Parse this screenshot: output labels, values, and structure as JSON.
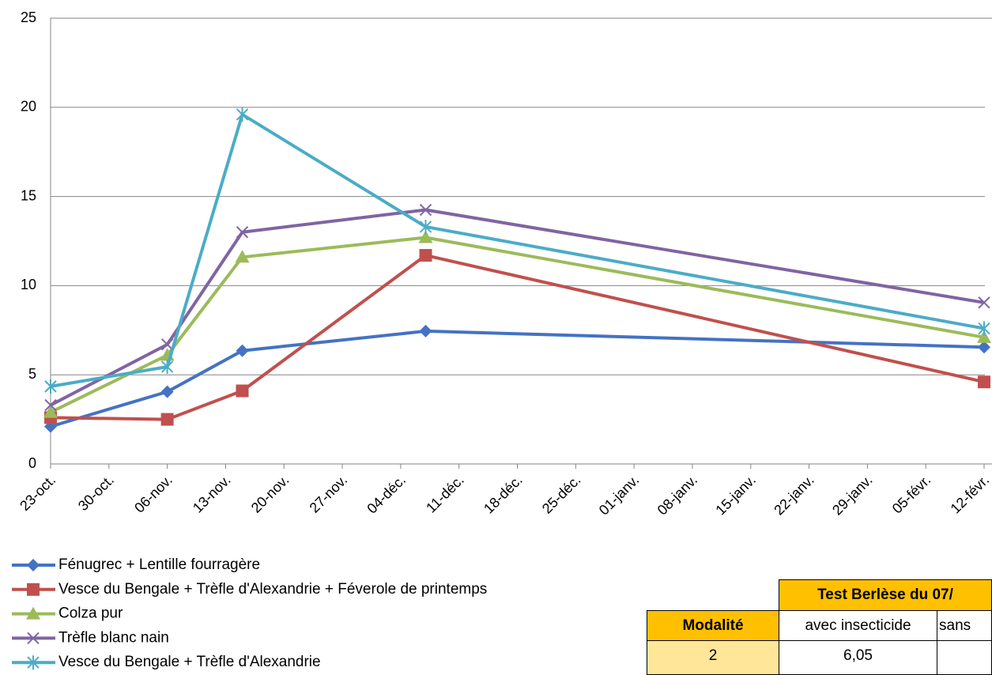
{
  "chart_data": {
    "type": "line",
    "x": [
      0,
      14,
      23,
      45,
      112
    ],
    "xlim": [
      0,
      112
    ],
    "xticks": [
      {
        "value": 0,
        "label": "23-oct."
      },
      {
        "value": 7,
        "label": "30-oct."
      },
      {
        "value": 14,
        "label": "06-nov."
      },
      {
        "value": 21,
        "label": "13-nov."
      },
      {
        "value": 28,
        "label": "20-nov."
      },
      {
        "value": 35,
        "label": "27-nov."
      },
      {
        "value": 42,
        "label": "04-déc."
      },
      {
        "value": 49,
        "label": "11-déc."
      },
      {
        "value": 56,
        "label": "18-déc."
      },
      {
        "value": 63,
        "label": "25-déc."
      },
      {
        "value": 70,
        "label": "01-janv."
      },
      {
        "value": 77,
        "label": "08-janv."
      },
      {
        "value": 84,
        "label": "15-janv."
      },
      {
        "value": 91,
        "label": "22-janv."
      },
      {
        "value": 98,
        "label": "29-janv."
      },
      {
        "value": 105,
        "label": "05-févr."
      },
      {
        "value": 112,
        "label": "12-févr."
      }
    ],
    "ylim": [
      0,
      25
    ],
    "yticks": [
      0,
      5,
      10,
      15,
      20,
      25
    ],
    "grid": true,
    "legend": "bottom",
    "series": [
      {
        "name": "Fénugrec + Lentille fourragère",
        "color": "#4472c4",
        "marker": "diamond",
        "values": [
          2.1,
          4.05,
          6.35,
          7.45,
          6.55
        ]
      },
      {
        "name": "Vesce du Bengale + Trèfle d'Alexandrie + Féverole de printemps",
        "color": "#c0504d",
        "marker": "square",
        "values": [
          2.6,
          2.5,
          4.1,
          11.7,
          4.6
        ]
      },
      {
        "name": "Colza pur",
        "color": "#9bbb59",
        "marker": "triangle",
        "values": [
          2.9,
          6.1,
          11.6,
          12.7,
          7.1
        ]
      },
      {
        "name": "Trèfle blanc nain",
        "color": "#8064a2",
        "marker": "x",
        "values": [
          3.3,
          6.7,
          13.0,
          14.25,
          9.05
        ]
      },
      {
        "name": "Vesce du Bengale + Trèfle d'Alexandrie",
        "color": "#4bacc6",
        "marker": "star",
        "values": [
          4.35,
          5.45,
          19.6,
          13.3,
          7.6
        ]
      }
    ]
  },
  "table": {
    "title": "Test Berlèse du 07/",
    "header": [
      "Modalité",
      "avec insecticide",
      "sans"
    ],
    "rows": [
      [
        "2",
        "6,05"
      ]
    ]
  }
}
